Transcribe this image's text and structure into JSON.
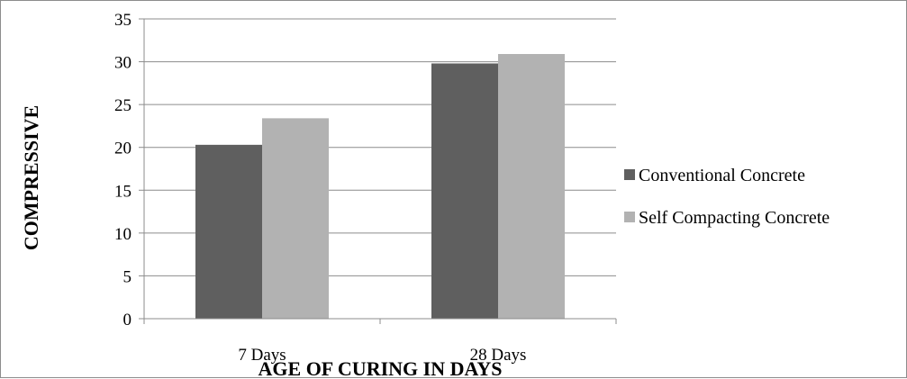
{
  "chart_data": {
    "type": "bar",
    "categories": [
      "7 Days",
      "28 Days"
    ],
    "series": [
      {
        "name": "Conventional Concrete",
        "values": [
          20.3,
          29.8
        ],
        "color": "#5f5f5f"
      },
      {
        "name": "Self Compacting Concrete",
        "values": [
          23.4,
          30.9
        ],
        "color": "#b2b2b2"
      }
    ],
    "xlabel": "AGE OF CURING IN DAYS",
    "ylabel": "COMPRESSIVE",
    "ylim": [
      0,
      35
    ],
    "yticks": [
      0,
      5,
      10,
      15,
      20,
      25,
      30,
      35
    ],
    "grid": true,
    "legend_position": "right"
  }
}
